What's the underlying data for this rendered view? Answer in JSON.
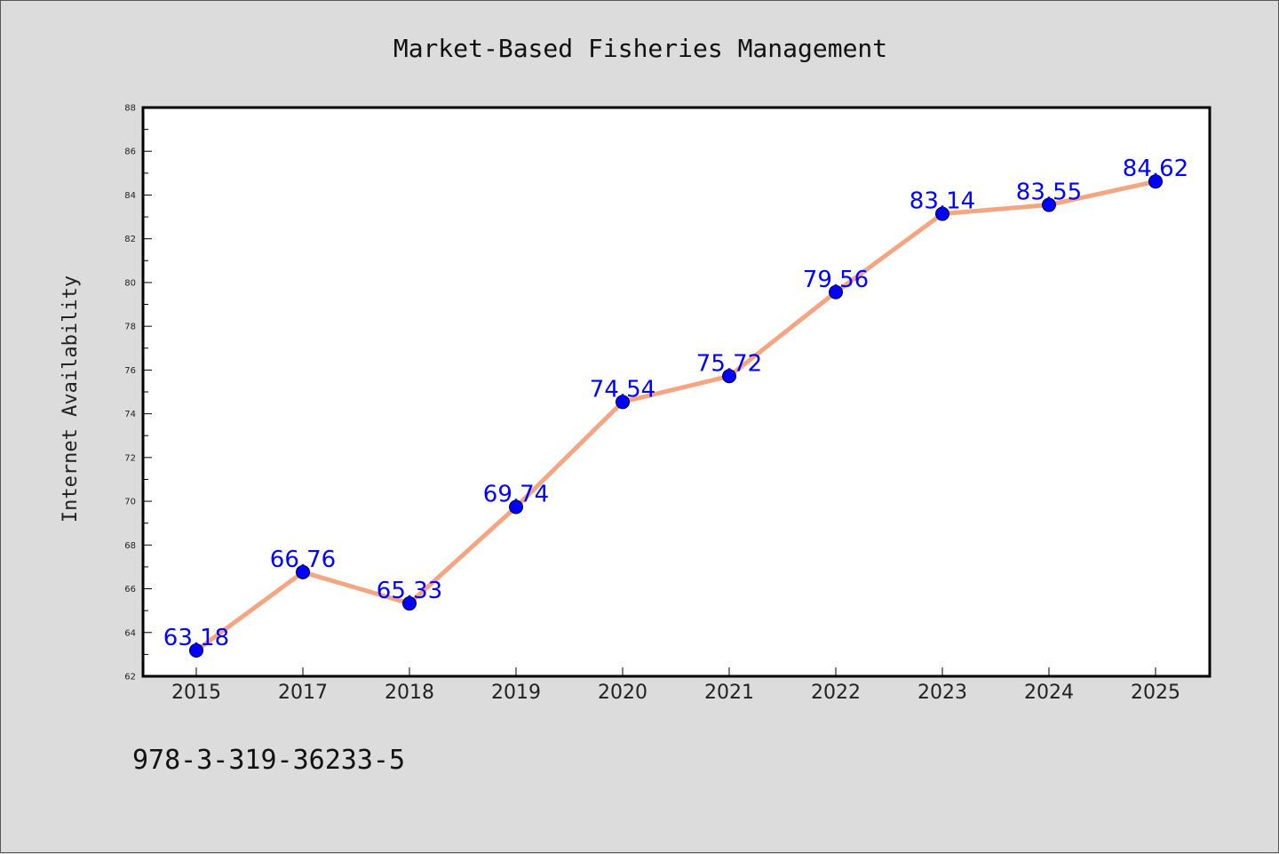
{
  "chart_data": {
    "type": "line",
    "title": "Market-Based Fisheries Management",
    "xlabel": "",
    "ylabel": "Internet Availability",
    "categories": [
      "2015",
      "2017",
      "2018",
      "2019",
      "2020",
      "2021",
      "2022",
      "2023",
      "2024",
      "2025"
    ],
    "series": [
      {
        "values": [
          63.18,
          66.76,
          65.33,
          69.74,
          74.54,
          75.72,
          79.56,
          83.14,
          83.55,
          84.62
        ]
      }
    ],
    "data_labels": [
      "63.18",
      "66.76",
      "65.33",
      "69.74",
      "74.54",
      "75.72",
      "79.56",
      "83.14",
      "83.55",
      "84.62"
    ],
    "ylim": [
      62,
      88
    ],
    "yticks": [
      "62",
      "64",
      "66",
      "68",
      "70",
      "72",
      "74",
      "76",
      "78",
      "80",
      "82",
      "84",
      "86",
      "88"
    ],
    "grid": false,
    "legend": "none",
    "line_color": "#f4a582",
    "marker_color": "#0000ff",
    "label_color": "#0000ff"
  },
  "footnote": "978-3-319-36233-5"
}
